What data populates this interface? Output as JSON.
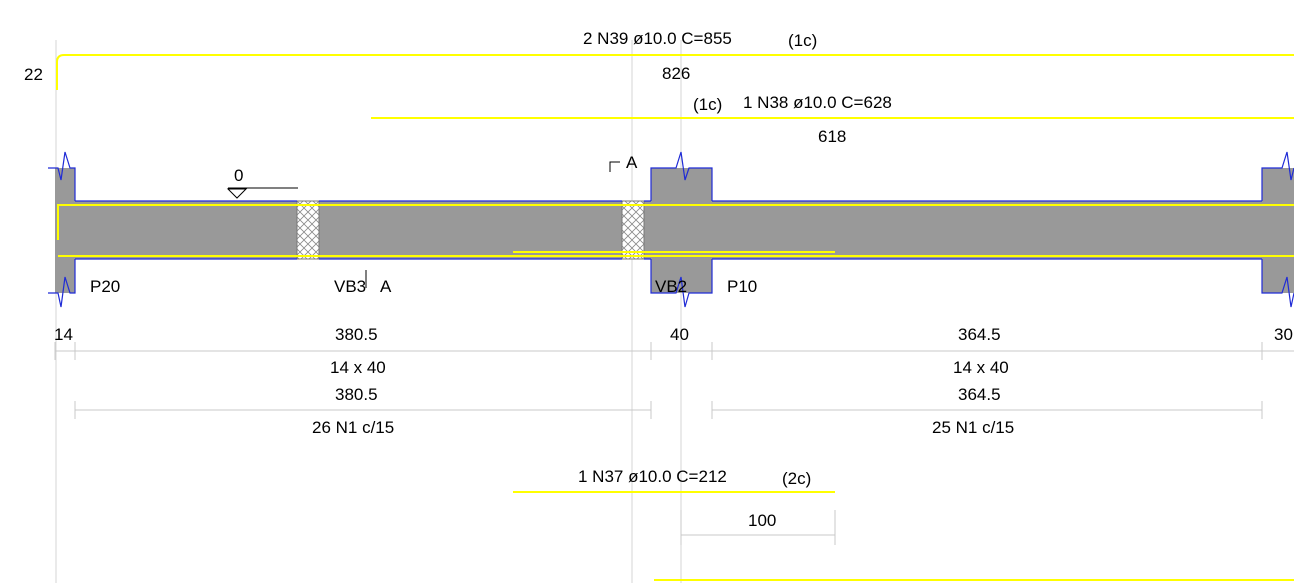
{
  "colors": {
    "background": "#ffffff",
    "beam_fill": "#999999",
    "outline": "#1f2bd6",
    "rebar": "#ffff00",
    "dimension": "#c8c8c8",
    "text": "#000000"
  },
  "top_rebar_1": {
    "label": "2 N39 ø10.0 C=855",
    "layer": "(1c)",
    "length": "826",
    "hook": "22"
  },
  "top_rebar_2": {
    "layer": "(1c)",
    "label": "1 N38 ø10.0 C=628",
    "length": "618"
  },
  "bottom_rebar": {
    "label": "1 N37 ø10.0 C=212",
    "layer": "(2c)",
    "length": "100"
  },
  "level_mark": "0",
  "section_mark": "A",
  "labels": {
    "p20": "P20",
    "vb3": "VB3",
    "vb3_section": "A",
    "vb2": "VB2",
    "p10": "P10"
  },
  "dims_row1": {
    "d1": "14",
    "d2": "380.5",
    "d3": "40",
    "d4": "364.5",
    "d5": "30"
  },
  "spans": {
    "left": {
      "section": "14 x 40",
      "length": "380.5",
      "stirrups": "26 N1 c/15"
    },
    "right": {
      "section": "14 x 40",
      "length": "364.5",
      "stirrups": "25 N1 c/15"
    }
  }
}
